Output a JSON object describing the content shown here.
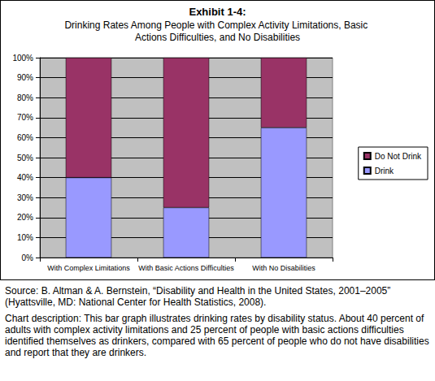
{
  "chart_data": {
    "type": "bar",
    "title": "Exhibit 1-4:",
    "subtitle": "Drinking Rates Among People with Complex Activity Limitations, Basic Actions Difficulties, and No Disabilities",
    "categories": [
      "With Complex Limitations",
      "With Basic Actions Difficulties",
      "With No Disabilities"
    ],
    "series": [
      {
        "name": "Drink",
        "color": "#9999ff",
        "values": [
          40,
          25,
          65
        ]
      },
      {
        "name": "Do Not Drink",
        "color": "#993366",
        "values": [
          60,
          75,
          35
        ]
      }
    ],
    "stacked": true,
    "ylim": [
      0,
      100
    ],
    "yticks": [
      {
        "value": 0,
        "label": "0%"
      },
      {
        "value": 10,
        "label": "10%"
      },
      {
        "value": 20,
        "label": "20%"
      },
      {
        "value": 30,
        "label": "30%"
      },
      {
        "value": 40,
        "label": "40%"
      },
      {
        "value": 50,
        "label": "50%"
      },
      {
        "value": 60,
        "label": "60%"
      },
      {
        "value": 70,
        "label": "70%"
      },
      {
        "value": 80,
        "label": "80%"
      },
      {
        "value": 90,
        "label": "90%"
      },
      {
        "value": 100,
        "label": "100%"
      }
    ],
    "grid": true,
    "legend": "right",
    "annotations": [
      "Source: B. Altman & A. Bernstein, “Disability and Health in the United States, 2001–2005” (Hyattsville, MD: National Center for Health Statistics, 2008).",
      "Chart description: This bar graph illustrates drinking rates by disability status. About 40 percent of adults with complex activity limitations and 25 percent of people with basic actions difficulties identified themselves as drinkers, compared with 65 percent of people who do not have disabilities and report that they are drinkers."
    ]
  }
}
